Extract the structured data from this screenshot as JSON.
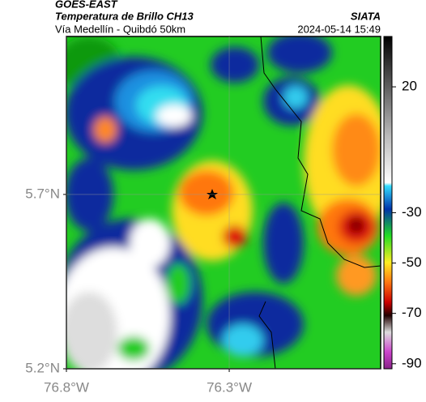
{
  "header": {
    "title": "GOES-EAST",
    "subtitle": "Temperatura de Brillo CH13",
    "source": "SIATA",
    "region": "Vía Medellín - Quibdó 50km",
    "timestamp": "2024-05-14 15:49"
  },
  "map": {
    "latlim": [
      6.153,
      5.2
    ],
    "lonlim": [
      -76.8,
      -75.835
    ],
    "lat_ticks": [
      {
        "value": 5.7,
        "label": "5.7°N"
      },
      {
        "value": 5.2,
        "label": "5.2°N"
      }
    ],
    "lon_ticks": [
      {
        "value": -76.8,
        "label": "76.8°W"
      },
      {
        "value": -76.3,
        "label": "76.3°W"
      }
    ],
    "grid": true
  },
  "colorbar": {
    "lim": [
      40,
      -92
    ],
    "ticks": [
      20,
      -30,
      -50,
      -70,
      -90
    ]
  }
}
